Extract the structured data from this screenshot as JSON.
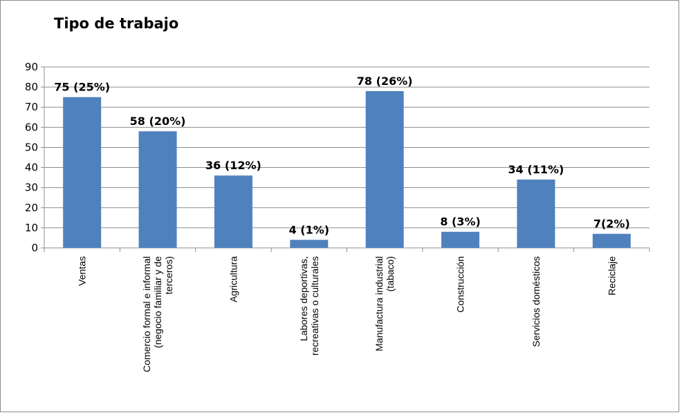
{
  "chart_data": {
    "type": "bar",
    "title": "Tipo de trabajo",
    "xlabel": "",
    "ylabel": "",
    "ylim": [
      0,
      90
    ],
    "yticks": [
      0,
      10,
      20,
      30,
      40,
      50,
      60,
      70,
      80,
      90
    ],
    "grid": true,
    "legend": "none",
    "bar_color": "#4f81bd",
    "categories": [
      [
        "Ventas"
      ],
      [
        "Comercio formal e informal",
        "(negocio familiar y de",
        "terceros)"
      ],
      [
        "Agricultura"
      ],
      [
        "Labores deportivas,",
        "recreativas o culturales"
      ],
      [
        "Manufactura  industrial",
        "(tabaco)"
      ],
      [
        "Construcción"
      ],
      [
        "Servicios domésticos"
      ],
      [
        "Reciclaje"
      ]
    ],
    "values": [
      75,
      58,
      36,
      4,
      78,
      8,
      34,
      7
    ],
    "data_labels": [
      "75 (25%)",
      "58 (20%)",
      "36 (12%)",
      "4 (1%)",
      "78 (26%)",
      "8 (3%)",
      "34 (11%)",
      "7(2%)"
    ]
  }
}
